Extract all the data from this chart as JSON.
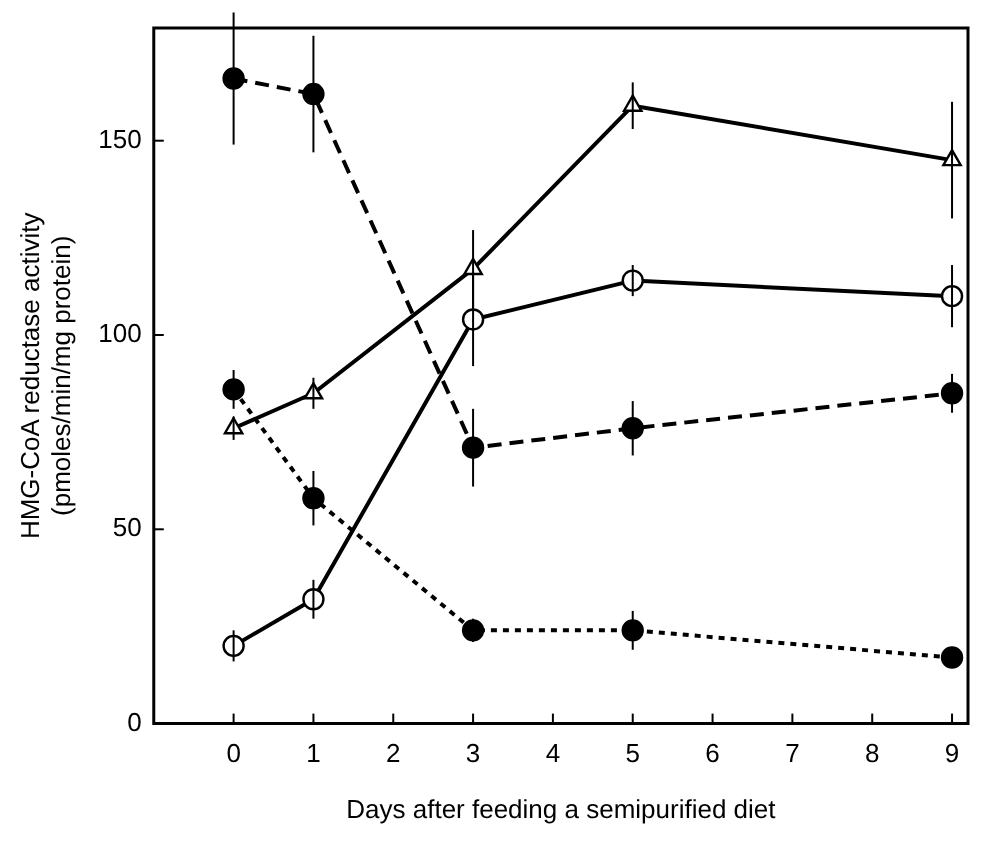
{
  "chart_data": {
    "type": "line",
    "xlabel": "Days after feeding a semipurified diet",
    "ylabel": "HMG-CoA reductase activity\n(pmoles/min/mg protein)",
    "x": [
      0,
      1,
      3,
      5,
      9
    ],
    "xlim": [
      -1,
      9.2
    ],
    "xticks": [
      0,
      1,
      2,
      3,
      4,
      5,
      6,
      7,
      8,
      9
    ],
    "ylim": [
      0,
      179
    ],
    "yticks": [
      0,
      50,
      100,
      150
    ],
    "grid": false,
    "legend": false,
    "series": [
      {
        "color": "#000000",
        "marker": "triangle",
        "line_style": "solid",
        "values": [
          76,
          85,
          117,
          159,
          145
        ],
        "errors": [
          3,
          4,
          10,
          6,
          15
        ]
      },
      {
        "color": "#000000",
        "marker": "circle",
        "line_style": "solid",
        "values": [
          20,
          32,
          104,
          114,
          110
        ],
        "errors": [
          4,
          5,
          12,
          4,
          8
        ]
      },
      {
        "color": "#000000",
        "marker": "circle",
        "line_style": "dashed",
        "values": [
          166,
          162,
          71,
          76,
          85
        ],
        "errors": [
          17,
          15,
          10,
          7,
          5
        ]
      },
      {
        "color": "#000000",
        "marker": "circle",
        "line_style": "dotted",
        "values": [
          86,
          58,
          24,
          24,
          17
        ],
        "errors": [
          5,
          7,
          3,
          5,
          2
        ]
      }
    ]
  }
}
